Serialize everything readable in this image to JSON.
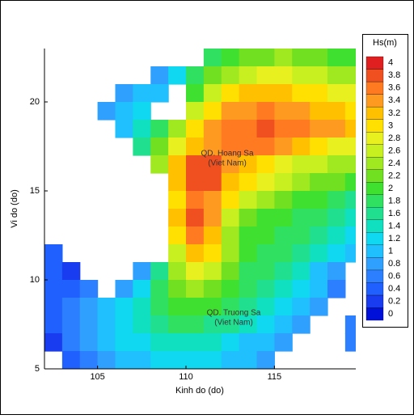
{
  "chart_data": {
    "type": "heatmap",
    "x_label": "Kinh do (do)",
    "y_label": "Vi do (do)",
    "xlim": [
      102,
      119.6
    ],
    "ylim": [
      5,
      23
    ],
    "xticks": [
      105,
      110,
      115
    ],
    "yticks": [
      5,
      10,
      15,
      20
    ],
    "x": [
      102.5,
      103.5,
      104.5,
      105.5,
      106.5,
      107.5,
      108.5,
      109.5,
      110.5,
      111.5,
      112.5,
      113.5,
      114.5,
      115.5,
      116.5,
      117.5,
      118.5,
      119.5
    ],
    "y": [
      22.5,
      21.5,
      20.5,
      19.5,
      18.5,
      17.5,
      16.5,
      15.5,
      14.5,
      13.5,
      12.5,
      11.5,
      10.5,
      9.5,
      8.5,
      7.5,
      6.5,
      5.5
    ],
    "z": [
      [
        null,
        null,
        null,
        null,
        null,
        null,
        null,
        null,
        null,
        1.8,
        2.0,
        2.2,
        2.3,
        2.4,
        2.3,
        2.2,
        2.1,
        2.0
      ],
      [
        null,
        null,
        null,
        null,
        null,
        null,
        0.8,
        1.2,
        1.8,
        2.2,
        2.5,
        2.7,
        2.8,
        2.8,
        2.7,
        2.6,
        2.5,
        2.4
      ],
      [
        null,
        null,
        null,
        null,
        0.8,
        1.0,
        1.0,
        null,
        2.0,
        2.6,
        3.0,
        3.2,
        3.2,
        3.2,
        3.1,
        3.0,
        2.9,
        2.8
      ],
      [
        null,
        null,
        null,
        0.8,
        1.0,
        1.2,
        null,
        null,
        2.6,
        3.0,
        3.4,
        3.5,
        3.6,
        3.5,
        3.4,
        3.3,
        3.2,
        3.0
      ],
      [
        null,
        null,
        null,
        null,
        1.0,
        1.4,
        1.8,
        2.4,
        3.0,
        3.4,
        3.6,
        3.7,
        3.8,
        3.7,
        3.6,
        3.5,
        3.4,
        3.2
      ],
      [
        null,
        null,
        null,
        null,
        null,
        1.6,
        2.2,
        2.8,
        3.2,
        3.5,
        3.6,
        3.7,
        3.6,
        3.4,
        3.2,
        3.0,
        2.9,
        2.8
      ],
      [
        null,
        null,
        null,
        null,
        null,
        null,
        2.4,
        3.2,
        3.8,
        3.8,
        3.5,
        3.2,
        3.0,
        2.8,
        2.7,
        2.6,
        2.5,
        2.4
      ],
      [
        null,
        null,
        null,
        null,
        null,
        null,
        null,
        3.2,
        3.9,
        3.8,
        3.3,
        3.0,
        2.8,
        2.6,
        2.4,
        2.3,
        2.2,
        2.0
      ],
      [
        null,
        null,
        null,
        null,
        null,
        null,
        null,
        3.0,
        3.6,
        3.5,
        3.0,
        2.6,
        2.4,
        2.2,
        2.1,
        2.0,
        1.9,
        1.6
      ],
      [
        null,
        null,
        null,
        null,
        null,
        null,
        null,
        3.2,
        3.8,
        3.4,
        2.6,
        2.2,
        2.1,
        2.0,
        1.9,
        1.8,
        1.6,
        1.4
      ],
      [
        null,
        null,
        null,
        null,
        null,
        null,
        null,
        3.0,
        3.6,
        3.2,
        2.4,
        2.1,
        2.0,
        1.9,
        1.8,
        1.7,
        1.4,
        1.2
      ],
      [
        0.4,
        null,
        null,
        null,
        null,
        null,
        null,
        2.6,
        3.2,
        3.0,
        2.4,
        2.0,
        1.9,
        1.8,
        1.7,
        1.5,
        1.2,
        1.0
      ],
      [
        0.4,
        0.3,
        null,
        null,
        null,
        0.8,
        1.6,
        2.4,
        2.8,
        2.6,
        2.2,
        1.9,
        1.8,
        1.6,
        1.4,
        1.1,
        0.8,
        null
      ],
      [
        0.4,
        0.5,
        0.6,
        null,
        0.8,
        1.2,
        1.8,
        2.2,
        2.4,
        2.2,
        2.0,
        1.8,
        1.6,
        1.4,
        1.2,
        1.0,
        0.6,
        null
      ],
      [
        0.4,
        0.6,
        0.8,
        1.0,
        1.2,
        1.4,
        1.8,
        2.0,
        2.1,
        2.0,
        1.8,
        1.6,
        1.4,
        1.2,
        1.0,
        0.8,
        null,
        null
      ],
      [
        0.4,
        0.6,
        0.8,
        1.0,
        1.2,
        1.4,
        1.6,
        1.8,
        1.8,
        1.7,
        1.6,
        1.4,
        1.2,
        1.0,
        0.8,
        null,
        null,
        0.6
      ],
      [
        0.3,
        0.6,
        0.8,
        1.0,
        1.2,
        1.3,
        1.4,
        1.5,
        1.5,
        1.4,
        1.3,
        1.1,
        1.0,
        0.8,
        null,
        null,
        null,
        0.6
      ],
      [
        null,
        0.5,
        0.7,
        0.9,
        1.0,
        1.1,
        1.2,
        1.3,
        1.3,
        1.2,
        1.1,
        1.0,
        0.8,
        null,
        null,
        null,
        null,
        null
      ]
    ],
    "colorbar": {
      "title": "Hs(m)",
      "levels": [
        0,
        0.2,
        0.4,
        0.6,
        0.8,
        1,
        1.2,
        1.4,
        1.6,
        1.8,
        2,
        2.2,
        2.4,
        2.6,
        2.8,
        3,
        3.2,
        3.4,
        3.6,
        3.8,
        4
      ],
      "colors": [
        "#0010d8",
        "#1a3cf0",
        "#2060ff",
        "#2c80ff",
        "#30a0ff",
        "#20c0ff",
        "#10d8f0",
        "#10e0c0",
        "#20e090",
        "#30e060",
        "#40e030",
        "#70e020",
        "#a0e820",
        "#c8f020",
        "#e8f020",
        "#ffe000",
        "#ffc000",
        "#ff9a20",
        "#ff7a20",
        "#f05020",
        "#e02020"
      ]
    },
    "annotations": [
      [
        "QD. Hoang Sa",
        "(Viet Nam)"
      ],
      [
        "QD. Truong Sa",
        "(Viet Nam)"
      ]
    ]
  }
}
